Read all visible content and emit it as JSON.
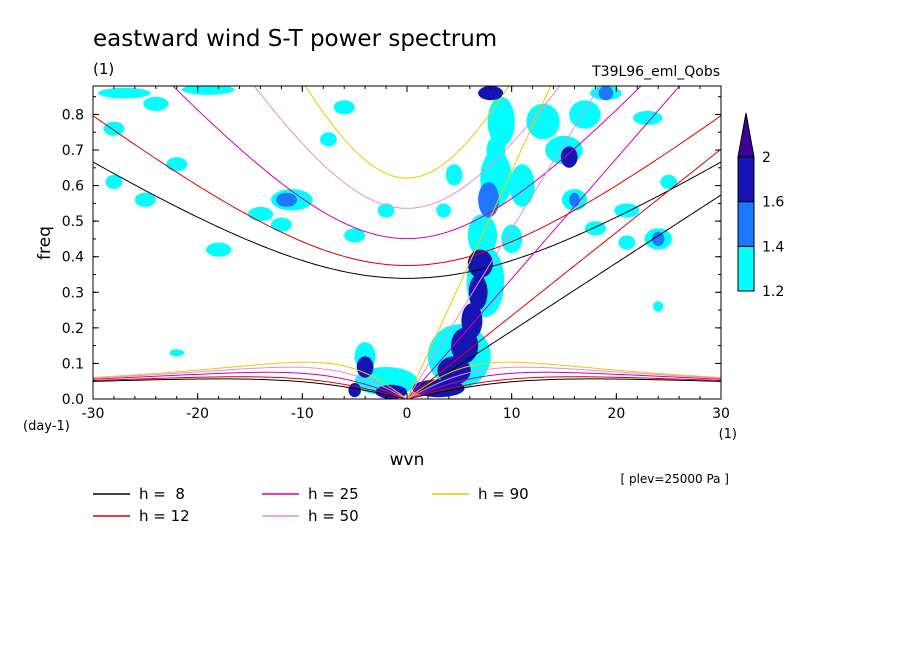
{
  "chart_data": {
    "type": "heatmap",
    "title": "eastward wind S-T power spectrum",
    "subtitle_left": "(1)",
    "subtitle_right": "T39L96_eml_Qobs",
    "xlabel": "wvn",
    "ylabel": "freq",
    "x_unit": "(1)",
    "y_unit": "(day-1)",
    "annotation": "[ plev=25000 Pa ]",
    "xlim": [
      -30,
      30
    ],
    "ylim": [
      0,
      0.88
    ],
    "x_ticks": [
      -30,
      -20,
      -10,
      0,
      10,
      20,
      30
    ],
    "y_ticks": [
      0.0,
      0.1,
      0.2,
      0.3,
      0.4,
      0.5,
      0.6,
      0.7,
      0.8
    ],
    "x_tick_labels": [
      "-30",
      "-20",
      "-10",
      "0",
      "10",
      "20",
      "30"
    ],
    "y_tick_labels": [
      "0.0",
      "0.1",
      "0.2",
      "0.3",
      "0.4",
      "0.5",
      "0.6",
      "0.7",
      "0.8"
    ],
    "colorbar": {
      "levels": [
        1.2,
        1.4,
        1.6,
        2
      ],
      "labels": [
        "1.2",
        "1.4",
        "1.6",
        "2"
      ],
      "colors": [
        "#00ffff",
        "#1e78ff",
        "#1414b4",
        "#3c0096"
      ]
    },
    "dispersion_curves": [
      {
        "name": "h =  8",
        "h": 8,
        "color": "#000000"
      },
      {
        "name": "h = 12",
        "h": 12,
        "color": "#dc0000"
      },
      {
        "name": "h = 25",
        "h": 25,
        "color": "#d200b4"
      },
      {
        "name": "h = 50",
        "h": 50,
        "color": "#e68ce6"
      },
      {
        "name": "h = 90",
        "h": 90,
        "color": "#f0c800"
      }
    ],
    "blobs": [
      {
        "x": 7,
        "y": 0.38,
        "rx": 1.2,
        "ry": 0.04,
        "level": 3
      },
      {
        "x": 6.8,
        "y": 0.3,
        "rx": 0.9,
        "ry": 0.05,
        "level": 3
      },
      {
        "x": 6.2,
        "y": 0.22,
        "rx": 1.0,
        "ry": 0.05,
        "level": 3
      },
      {
        "x": 5.5,
        "y": 0.15,
        "rx": 1.3,
        "ry": 0.05,
        "level": 3
      },
      {
        "x": 4.5,
        "y": 0.08,
        "rx": 1.6,
        "ry": 0.04,
        "level": 3
      },
      {
        "x": 3,
        "y": 0.03,
        "rx": 2.5,
        "ry": 0.025,
        "level": 3
      },
      {
        "x": -1.5,
        "y": 0.02,
        "rx": 1.5,
        "ry": 0.02,
        "level": 3
      },
      {
        "x": -4,
        "y": 0.09,
        "rx": 0.8,
        "ry": 0.03,
        "level": 3
      },
      {
        "x": -5,
        "y": 0.025,
        "rx": 0.6,
        "ry": 0.02,
        "level": 3
      },
      {
        "x": 7.8,
        "y": 0.56,
        "rx": 1.0,
        "ry": 0.05,
        "level": 2
      },
      {
        "x": 8.5,
        "y": 0.7,
        "rx": 0.9,
        "ry": 0.04,
        "level": 1
      },
      {
        "x": 8,
        "y": 0.86,
        "rx": 1.2,
        "ry": 0.02,
        "level": 3
      },
      {
        "x": 15.5,
        "y": 0.68,
        "rx": 0.8,
        "ry": 0.03,
        "level": 3
      },
      {
        "x": 16,
        "y": 0.56,
        "rx": 0.5,
        "ry": 0.02,
        "level": 2
      },
      {
        "x": 19,
        "y": 0.86,
        "rx": 0.7,
        "ry": 0.02,
        "level": 2
      },
      {
        "x": 24,
        "y": 0.45,
        "rx": 0.6,
        "ry": 0.02,
        "level": 2
      },
      {
        "x": 7.2,
        "y": 0.46,
        "rx": 1.4,
        "ry": 0.06,
        "level": 1
      },
      {
        "x": 8.5,
        "y": 0.62,
        "rx": 1.5,
        "ry": 0.08,
        "level": 1
      },
      {
        "x": 9,
        "y": 0.78,
        "rx": 1.3,
        "ry": 0.07,
        "level": 1
      },
      {
        "x": 7.5,
        "y": 0.33,
        "rx": 1.8,
        "ry": 0.1,
        "level": 1
      },
      {
        "x": 5,
        "y": 0.12,
        "rx": 3.0,
        "ry": 0.09,
        "level": 1
      },
      {
        "x": -2,
        "y": 0.05,
        "rx": 3.0,
        "ry": 0.04,
        "level": 1
      },
      {
        "x": -4,
        "y": 0.12,
        "rx": 1.0,
        "ry": 0.04,
        "level": 1
      },
      {
        "x": 13,
        "y": 0.78,
        "rx": 1.6,
        "ry": 0.05,
        "level": 1
      },
      {
        "x": 15,
        "y": 0.7,
        "rx": 1.8,
        "ry": 0.04,
        "level": 1
      },
      {
        "x": 17,
        "y": 0.8,
        "rx": 1.5,
        "ry": 0.04,
        "level": 1
      },
      {
        "x": 19,
        "y": 0.86,
        "rx": 1.5,
        "ry": 0.02,
        "level": 1
      },
      {
        "x": 16,
        "y": 0.56,
        "rx": 1.2,
        "ry": 0.03,
        "level": 1
      },
      {
        "x": 23,
        "y": 0.79,
        "rx": 1.4,
        "ry": 0.02,
        "level": 1
      },
      {
        "x": 24,
        "y": 0.45,
        "rx": 1.3,
        "ry": 0.03,
        "level": 1
      },
      {
        "x": 18,
        "y": 0.48,
        "rx": 1.0,
        "ry": 0.02,
        "level": 1
      },
      {
        "x": 21,
        "y": 0.53,
        "rx": 1.2,
        "ry": 0.02,
        "level": 1
      },
      {
        "x": -11.5,
        "y": 0.56,
        "rx": 1.0,
        "ry": 0.02,
        "level": 2
      },
      {
        "x": -11,
        "y": 0.56,
        "rx": 2.0,
        "ry": 0.03,
        "level": 1
      },
      {
        "x": -14,
        "y": 0.52,
        "rx": 1.2,
        "ry": 0.02,
        "level": 1
      },
      {
        "x": -25,
        "y": 0.56,
        "rx": 1.0,
        "ry": 0.02,
        "level": 1
      },
      {
        "x": -24,
        "y": 0.83,
        "rx": 1.2,
        "ry": 0.02,
        "level": 1
      },
      {
        "x": -27,
        "y": 0.86,
        "rx": 2.5,
        "ry": 0.015,
        "level": 1
      },
      {
        "x": -19,
        "y": 0.87,
        "rx": 2.5,
        "ry": 0.015,
        "level": 1
      },
      {
        "x": -28,
        "y": 0.76,
        "rx": 1.0,
        "ry": 0.02,
        "level": 1
      },
      {
        "x": -22,
        "y": 0.66,
        "rx": 1.0,
        "ry": 0.02,
        "level": 1
      },
      {
        "x": -6,
        "y": 0.82,
        "rx": 1.0,
        "ry": 0.02,
        "level": 1
      },
      {
        "x": -7.5,
        "y": 0.73,
        "rx": 0.8,
        "ry": 0.02,
        "level": 1
      },
      {
        "x": -18,
        "y": 0.42,
        "rx": 1.2,
        "ry": 0.02,
        "level": 1
      },
      {
        "x": -12,
        "y": 0.49,
        "rx": 1.0,
        "ry": 0.02,
        "level": 1
      },
      {
        "x": -5,
        "y": 0.46,
        "rx": 1.0,
        "ry": 0.02,
        "level": 1
      },
      {
        "x": -2,
        "y": 0.53,
        "rx": 0.8,
        "ry": 0.02,
        "level": 1
      },
      {
        "x": 4.5,
        "y": 0.63,
        "rx": 0.8,
        "ry": 0.03,
        "level": 1
      },
      {
        "x": 3.5,
        "y": 0.53,
        "rx": 0.7,
        "ry": 0.02,
        "level": 1
      },
      {
        "x": -22,
        "y": 0.13,
        "rx": 0.7,
        "ry": 0.01,
        "level": 1
      },
      {
        "x": -28,
        "y": 0.61,
        "rx": 0.8,
        "ry": 0.02,
        "level": 1
      },
      {
        "x": 11,
        "y": 0.6,
        "rx": 1.2,
        "ry": 0.06,
        "level": 1
      },
      {
        "x": 10,
        "y": 0.45,
        "rx": 1.0,
        "ry": 0.04,
        "level": 1
      },
      {
        "x": 25,
        "y": 0.61,
        "rx": 0.8,
        "ry": 0.02,
        "level": 1
      },
      {
        "x": 21,
        "y": 0.44,
        "rx": 0.8,
        "ry": 0.02,
        "level": 1
      },
      {
        "x": 24,
        "y": 0.26,
        "rx": 0.5,
        "ry": 0.015,
        "level": 1
      }
    ]
  }
}
